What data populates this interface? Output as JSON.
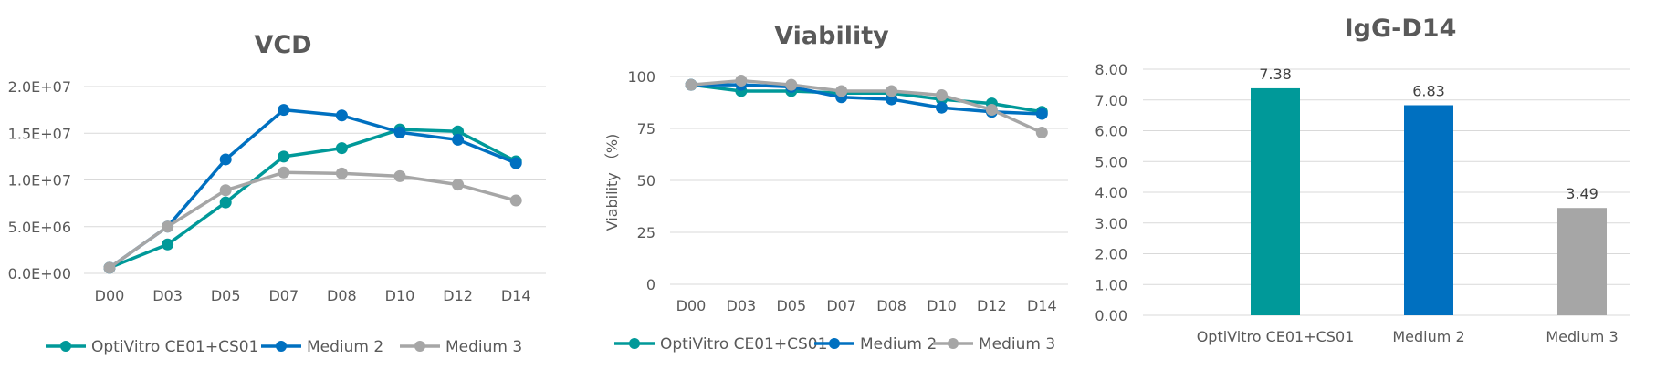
{
  "chart_data": [
    {
      "type": "line",
      "title": "VCD",
      "xlabel": "",
      "ylabel": "",
      "categories": [
        "D00",
        "D03",
        "D05",
        "D07",
        "D08",
        "D10",
        "D12",
        "D14"
      ],
      "ylim": [
        0,
        20000000
      ],
      "yticks": [
        "0.0E+00",
        "5.0E+06",
        "1.0E+07",
        "1.5E+07",
        "2.0E+07"
      ],
      "grid": true,
      "legend": "bottom",
      "series": [
        {
          "name": "OptiVitro CE01+CS01",
          "color": "#009999",
          "values": [
            600000,
            3100000,
            7600000,
            12500000,
            13400000,
            15400000,
            15200000,
            12000000
          ]
        },
        {
          "name": "Medium 2",
          "color": "#0070c0",
          "values": [
            600000,
            5000000,
            12200000,
            17500000,
            16900000,
            15100000,
            14300000,
            11800000
          ]
        },
        {
          "name": "Medium 3",
          "color": "#a6a6a6",
          "values": [
            600000,
            5000000,
            8900000,
            10800000,
            10700000,
            10400000,
            9500000,
            7800000
          ]
        }
      ]
    },
    {
      "type": "line",
      "title": "Viability",
      "xlabel": "",
      "ylabel": "Viability （%)",
      "categories": [
        "D00",
        "D03",
        "D05",
        "D07",
        "D08",
        "D10",
        "D12",
        "D14"
      ],
      "ylim": [
        0,
        100
      ],
      "yticks": [
        "0",
        "25",
        "50",
        "75",
        "100"
      ],
      "grid": true,
      "legend": "bottom",
      "series": [
        {
          "name": "OptiVitro CE01+CS01",
          "color": "#009999",
          "values": [
            96,
            93,
            93,
            92,
            92,
            89,
            87,
            83
          ]
        },
        {
          "name": "Medium 2",
          "color": "#0070c0",
          "values": [
            96,
            96,
            95,
            90,
            89,
            85,
            83,
            82
          ]
        },
        {
          "name": "Medium 3",
          "color": "#a6a6a6",
          "values": [
            96,
            98,
            96,
            93,
            93,
            91,
            84,
            73
          ]
        }
      ]
    },
    {
      "type": "bar",
      "title": "IgG-D14",
      "xlabel": "",
      "ylabel": "",
      "categories": [
        "OptiVitro CE01+CS01",
        "Medium 2",
        "Medium 3"
      ],
      "values": [
        7.38,
        6.83,
        3.49
      ],
      "data_labels": [
        "7.38",
        "6.83",
        "3.49"
      ],
      "colors": [
        "#009999",
        "#0070c0",
        "#a6a6a6"
      ],
      "ylim": [
        0,
        8
      ],
      "yticks": [
        "0.00",
        "1.00",
        "2.00",
        "3.00",
        "4.00",
        "5.00",
        "6.00",
        "7.00",
        "8.00"
      ],
      "grid": true,
      "legend": "none"
    }
  ]
}
